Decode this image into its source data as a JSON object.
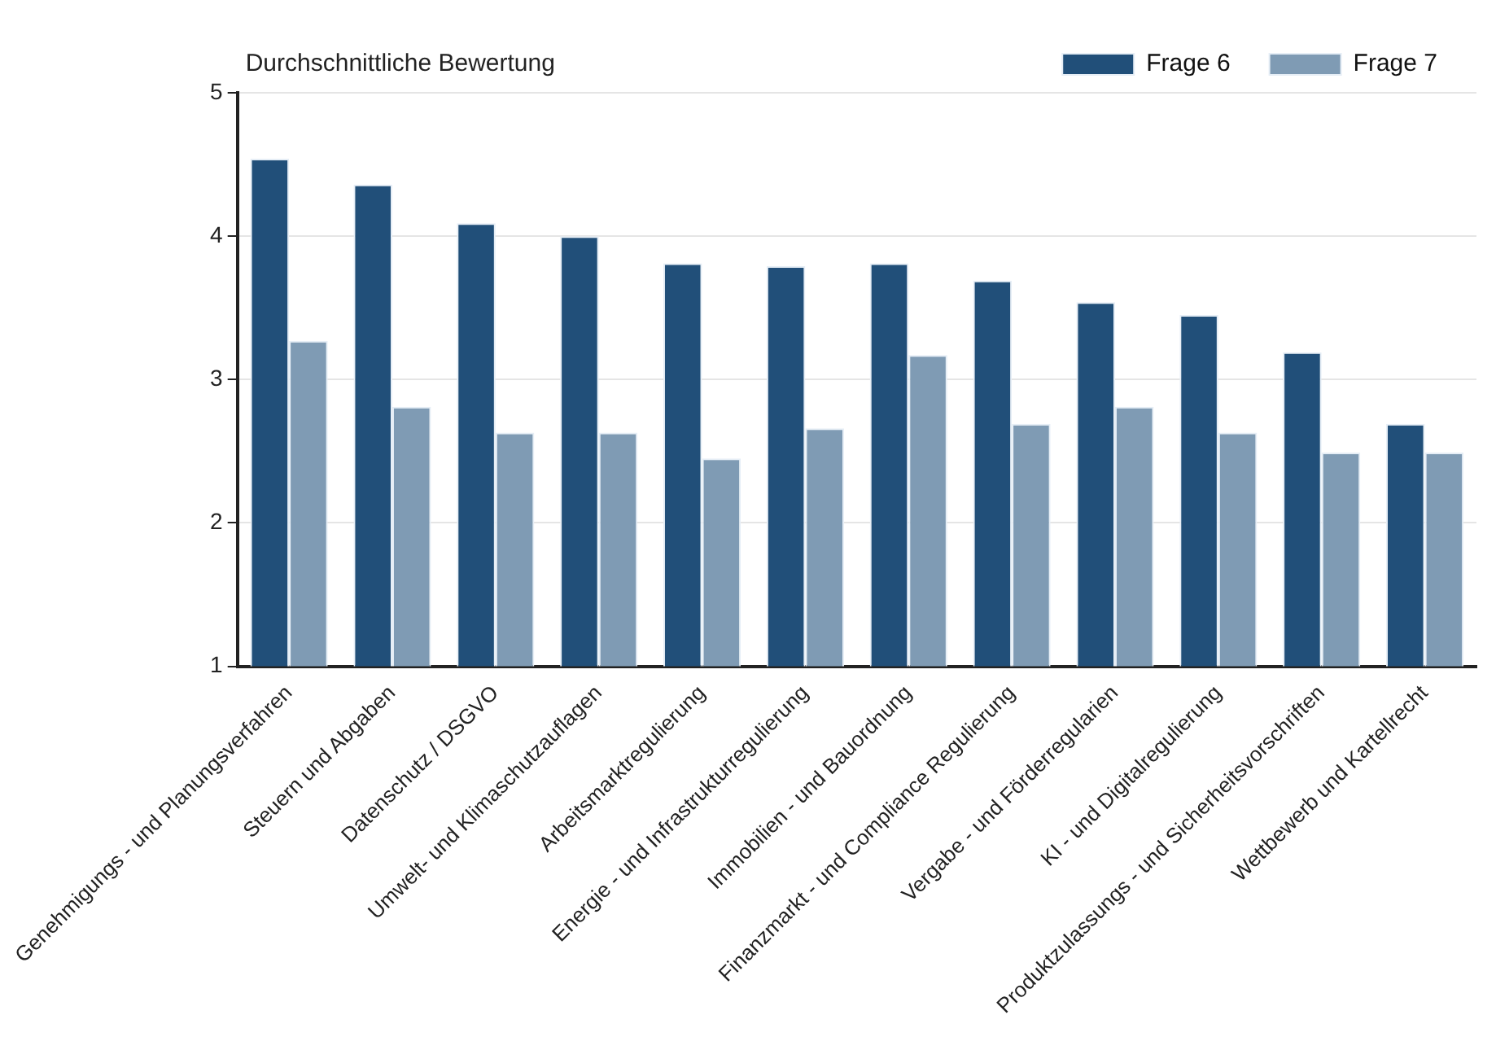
{
  "chart_data": {
    "type": "bar",
    "ylabel": "Durchschnittliche Bewertung",
    "categories": [
      "Genehmigungs - und Planungsverfahren",
      "Steuern und Abgaben",
      "Datenschutz / DSGVO",
      "Umwelt- und Klimaschutzauflagen",
      "Arbeitsmarktregulierung",
      "Energie - und Infrastrukturregulierung",
      "Immobilien - und Bauordnung",
      "Finanzmarkt - und Compliance Regulierung",
      "Vergabe - und Förderregularien",
      "KI - und Digitalregulierung",
      "Produktzulassungs - und Sicherheitsvorschriften",
      "Wettbewerb und Kartellrecht"
    ],
    "series": [
      {
        "name": "Frage 6",
        "color": "#214f79",
        "values": [
          4.54,
          4.36,
          4.09,
          4.0,
          3.81,
          3.79,
          3.81,
          3.69,
          3.54,
          3.45,
          3.19,
          2.69
        ]
      },
      {
        "name": "Frage 7",
        "color": "#7f9bb4",
        "values": [
          3.27,
          2.81,
          2.63,
          2.63,
          2.45,
          2.66,
          3.17,
          2.69,
          2.81,
          2.63,
          2.49,
          2.49
        ]
      }
    ],
    "ylim": [
      1,
      5
    ],
    "yticks": [
      1,
      2,
      3,
      4,
      5
    ],
    "grid": "y",
    "legend": "top right"
  }
}
